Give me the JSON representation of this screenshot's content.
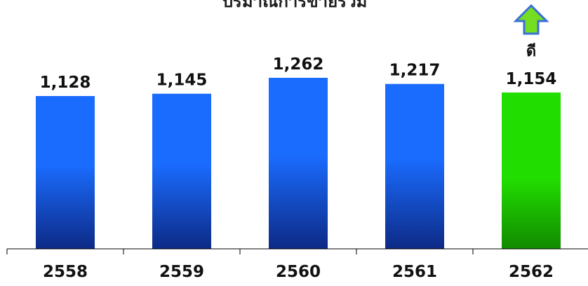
{
  "chart_data": {
    "type": "bar",
    "title": "ปริมาณการขายรวม",
    "categories": [
      "2558",
      "2559",
      "2560",
      "2561",
      "2562"
    ],
    "values": [
      1128,
      1145,
      1262,
      1217,
      1154
    ],
    "value_labels": [
      "1,128",
      "1,145",
      "1,262",
      "1,217",
      "1,154"
    ],
    "xlabel": "",
    "ylabel": "",
    "grid": false,
    "legend": "none",
    "annotation": {
      "category": "2562",
      "text": "ดี",
      "icon": "up-arrow-icon"
    },
    "colors": {
      "default_bar_top": "#1a6cff",
      "default_bar_bottom": "#0d2a86",
      "highlight_bar_top": "#22dd00",
      "highlight_bar_bottom": "#118a00",
      "arrow_fill": "#77dd22",
      "arrow_stroke": "#3a6fd8"
    },
    "highlight_category": "2562"
  }
}
